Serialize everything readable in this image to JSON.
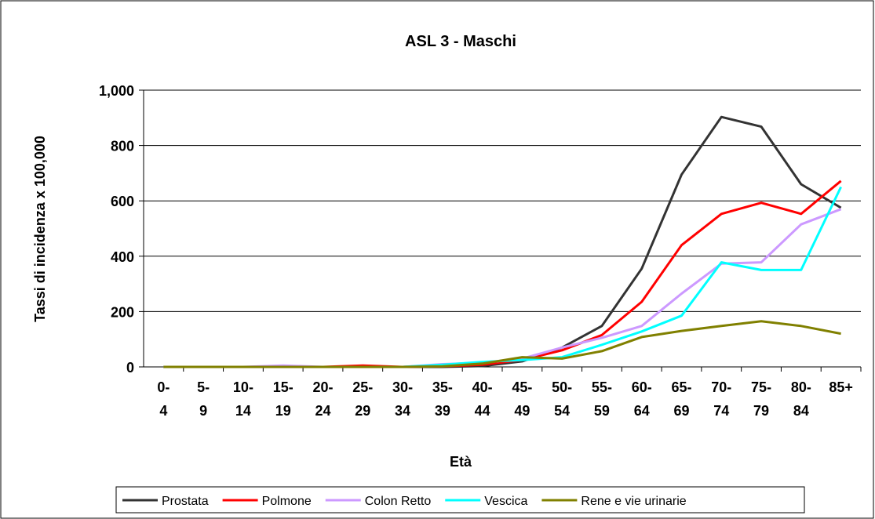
{
  "chart_data": {
    "type": "line",
    "title": "ASL 3 - Maschi",
    "xlabel": "Età",
    "ylabel": "Tassi di incidenza x 100,000",
    "categories": [
      "0-4",
      "5-9",
      "10-14",
      "15-19",
      "20-24",
      "25-29",
      "30-34",
      "35-39",
      "40-44",
      "45-49",
      "50-54",
      "55-59",
      "60-64",
      "65-69",
      "70-74",
      "75-79",
      "80-84",
      "85+"
    ],
    "series": [
      {
        "name": "Prostata",
        "color": "#333333",
        "values": [
          0,
          0,
          0,
          0,
          0,
          0,
          0,
          0,
          3,
          20,
          70,
          148,
          355,
          695,
          903,
          868,
          660,
          575
        ]
      },
      {
        "name": "Polmone",
        "color": "#ff0000",
        "values": [
          0,
          0,
          0,
          0,
          0,
          5,
          0,
          2,
          8,
          25,
          60,
          115,
          235,
          440,
          553,
          593,
          553,
          672
        ]
      },
      {
        "name": "Colon Retto",
        "color": "#cc99ff",
        "values": [
          0,
          0,
          0,
          5,
          0,
          0,
          0,
          10,
          15,
          30,
          70,
          105,
          148,
          265,
          373,
          378,
          515,
          570
        ]
      },
      {
        "name": "Vescica",
        "color": "#00ffff",
        "values": [
          0,
          0,
          0,
          0,
          0,
          0,
          0,
          8,
          18,
          25,
          35,
          80,
          128,
          185,
          378,
          350,
          350,
          650
        ]
      },
      {
        "name": "Rene e vie urinarie",
        "color": "#808000",
        "values": [
          0,
          0,
          0,
          0,
          0,
          0,
          0,
          2,
          12,
          35,
          30,
          57,
          108,
          130,
          148,
          165,
          148,
          120
        ]
      }
    ],
    "ylim": [
      0,
      1000
    ],
    "yticks": [
      0,
      200,
      400,
      600,
      800,
      {
        "value": 1000,
        "label": "1,000"
      }
    ],
    "grid": true,
    "legend": "bottom"
  }
}
